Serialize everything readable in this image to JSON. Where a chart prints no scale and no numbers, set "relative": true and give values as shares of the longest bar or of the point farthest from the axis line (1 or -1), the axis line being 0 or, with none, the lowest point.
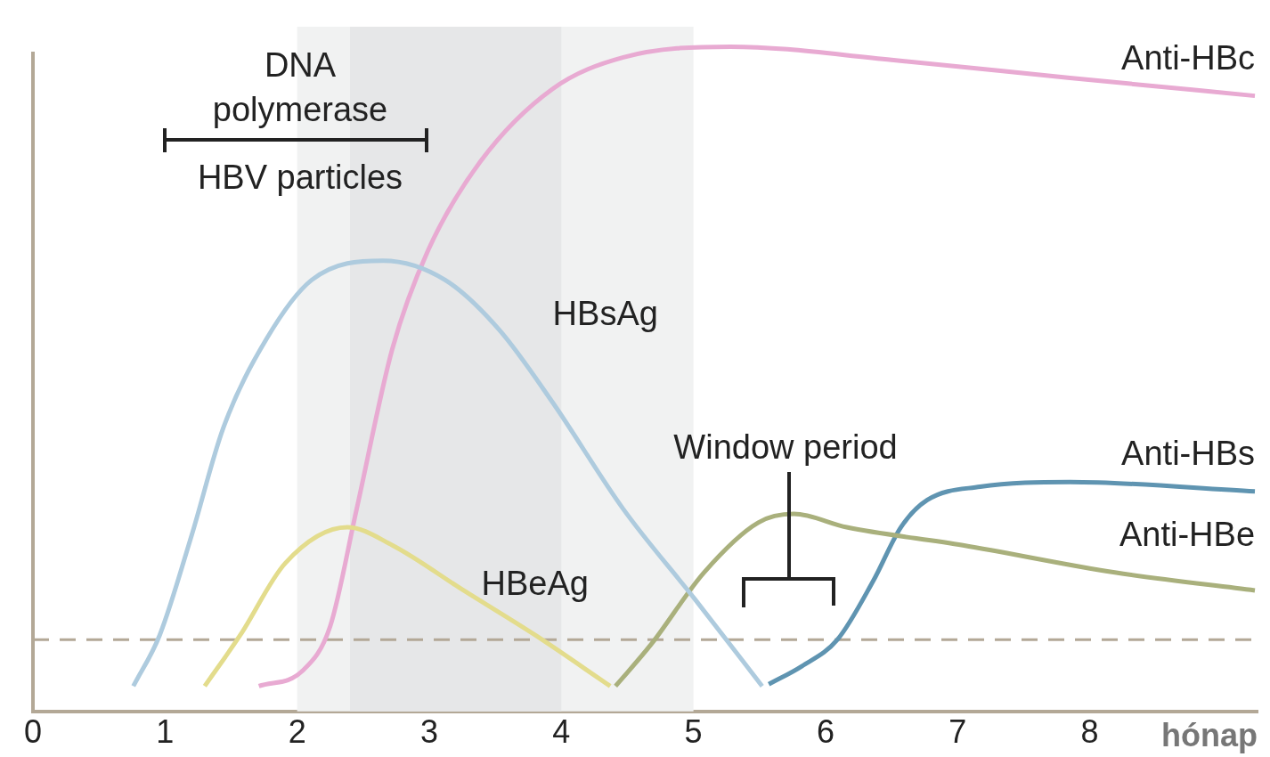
{
  "chart_data": {
    "type": "line",
    "relative": true,
    "xlabel": "hónap",
    "xlim": [
      0,
      9.27
    ],
    "xticks": [
      0,
      1,
      2,
      3,
      4,
      5,
      6,
      7,
      8
    ],
    "grid": false,
    "legend": false,
    "marker": "none",
    "line_style": "solid",
    "tick_labels": "x",
    "series": [
      {
        "name": "HBsAg",
        "color": "#aecbde",
        "x": [
          0.76,
          0.96,
          1.2,
          1.44,
          1.77,
          2.11,
          2.65,
          3.12,
          3.53,
          3.93,
          4.47,
          5.01,
          5.52
        ],
        "values": [
          0.038,
          0.115,
          0.264,
          0.426,
          0.561,
          0.649,
          0.678,
          0.649,
          0.574,
          0.466,
          0.304,
          0.169,
          0.038
        ]
      },
      {
        "name": "HBeAg",
        "color": "#e3dc8c",
        "x": [
          1.3,
          1.57,
          1.91,
          2.38,
          2.72,
          3.26,
          3.8,
          4.37
        ],
        "values": [
          0.038,
          0.115,
          0.223,
          0.277,
          0.25,
          0.182,
          0.115,
          0.038
        ]
      },
      {
        "name": "Anti-HBc",
        "color": "#e8aad2",
        "x": [
          1.71,
          2.04,
          2.25,
          2.45,
          2.72,
          2.99,
          3.39,
          3.93,
          4.47,
          5.28,
          6.5,
          7.85,
          9.25
        ],
        "values": [
          0.038,
          0.061,
          0.128,
          0.304,
          0.545,
          0.693,
          0.828,
          0.936,
          0.984,
          1,
          0.98,
          0.953,
          0.926
        ]
      },
      {
        "name": "Anti-HBe",
        "color": "#a9b07c",
        "x": [
          4.41,
          4.68,
          5.08,
          5.49,
          5.76,
          6.16,
          7.04,
          8.19,
          9.25
        ],
        "values": [
          0.038,
          0.101,
          0.209,
          0.284,
          0.297,
          0.277,
          0.25,
          0.209,
          0.182
        ]
      },
      {
        "name": "Anti-HBs",
        "color": "#5f94b1",
        "x": [
          5.57,
          5.82,
          6.09,
          6.36,
          6.57,
          6.77,
          7.17,
          7.85,
          9.25
        ],
        "values": [
          0.041,
          0.068,
          0.108,
          0.196,
          0.277,
          0.318,
          0.338,
          0.345,
          0.331
        ]
      }
    ],
    "bands": [
      {
        "axis": "x",
        "from": 2,
        "to": 5,
        "color": "#f1f2f2"
      },
      {
        "axis": "x",
        "from": 2.4,
        "to": 4,
        "color": "#e6e7e8"
      }
    ],
    "ref_lines": [
      {
        "axis": "y",
        "value": 0.108,
        "color": "#b3a896",
        "line_style": "dashed"
      }
    ],
    "annotations": [
      "DNA\npolymerase",
      "HBV particles",
      "Window period"
    ]
  }
}
